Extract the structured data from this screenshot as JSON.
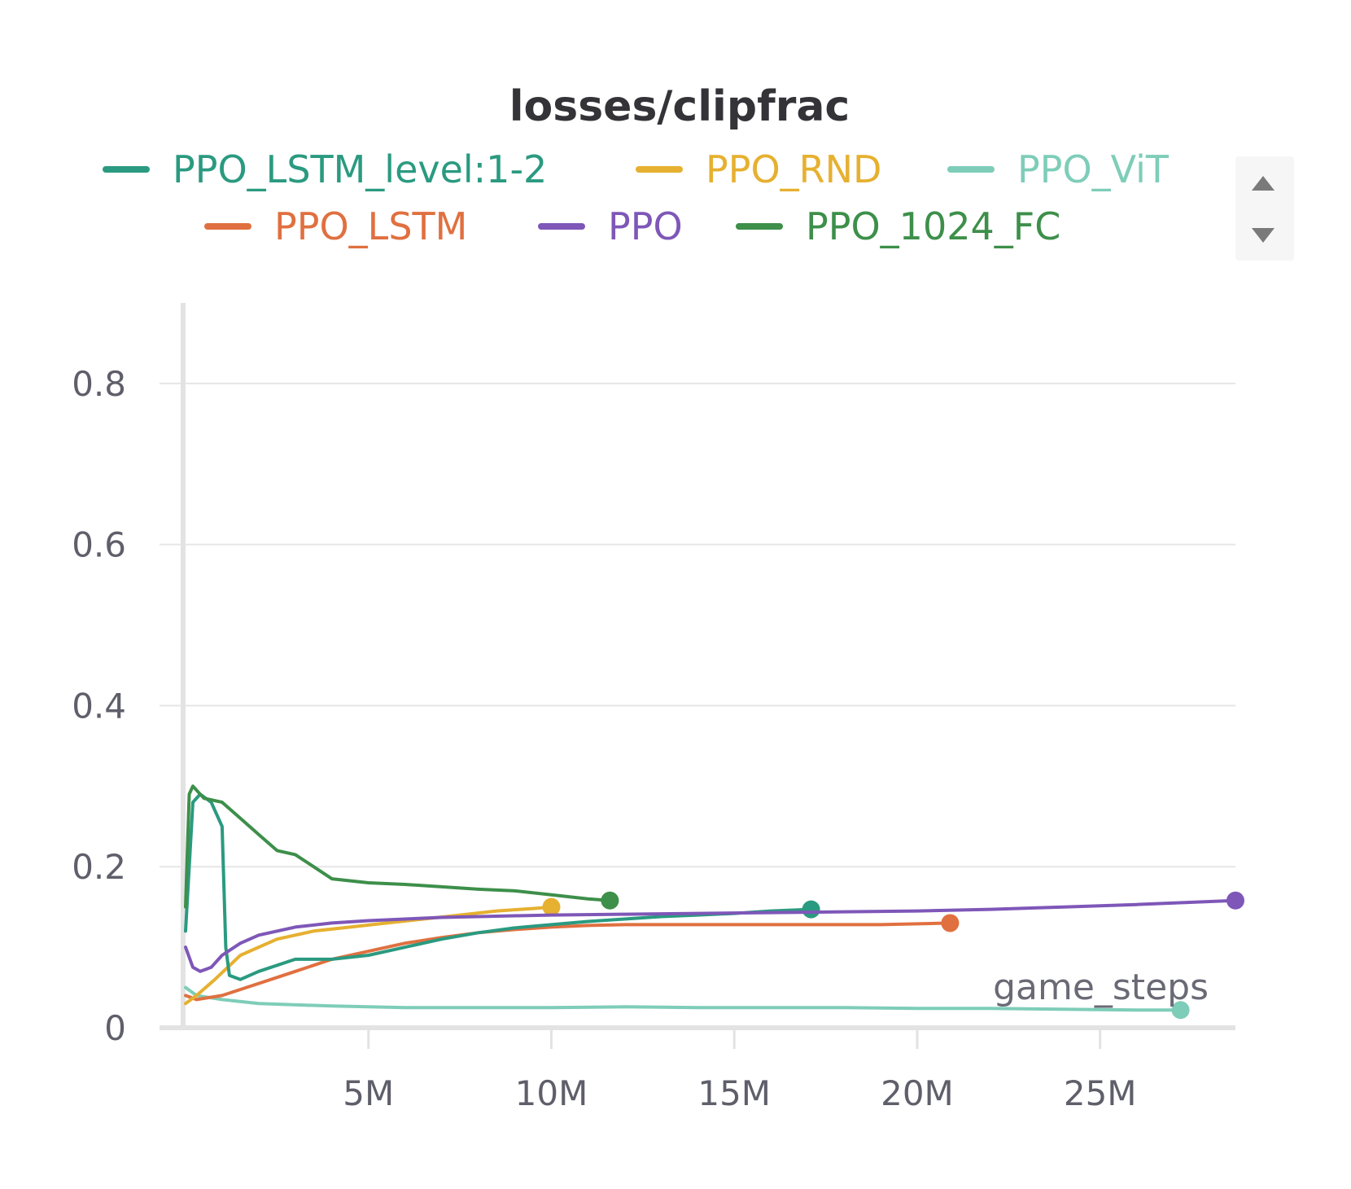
{
  "chart_data": {
    "type": "line",
    "title": "losses/clipfrac",
    "xlabel": "game_steps",
    "ylabel": "",
    "xlim": [
      0,
      28700000
    ],
    "ylim": [
      0,
      0.9
    ],
    "x_ticks": [
      5000000,
      10000000,
      15000000,
      20000000,
      25000000
    ],
    "x_tick_labels": [
      "5M",
      "10M",
      "15M",
      "20M",
      "25M"
    ],
    "y_ticks": [
      0,
      0.2,
      0.4,
      0.6,
      0.8
    ],
    "y_tick_labels": [
      "0",
      "0.2",
      "0.4",
      "0.6",
      "0.8"
    ],
    "grid": true,
    "legend_position": "top",
    "series": [
      {
        "name": "PPO_LSTM_level:1-2",
        "color": "#2a9a80",
        "end_marker": true,
        "x": [
          0,
          200000,
          400000,
          700000,
          1000000,
          1100000,
          1200000,
          1500000,
          2000000,
          3000000,
          4000000,
          5000000,
          6000000,
          7000000,
          8000000,
          9000000,
          10000000,
          11000000,
          12000000,
          13000000,
          14000000,
          15000000,
          16000000,
          17100000
        ],
        "y": [
          0.12,
          0.28,
          0.29,
          0.28,
          0.25,
          0.1,
          0.065,
          0.06,
          0.07,
          0.085,
          0.085,
          0.09,
          0.1,
          0.11,
          0.118,
          0.124,
          0.128,
          0.132,
          0.135,
          0.138,
          0.14,
          0.142,
          0.145,
          0.147
        ]
      },
      {
        "name": "PPO_RND",
        "color": "#e6b030",
        "end_marker": true,
        "x": [
          0,
          300000,
          800000,
          1500000,
          2500000,
          3500000,
          4500000,
          5500000,
          6500000,
          7500000,
          8500000,
          9500000,
          10000000
        ],
        "y": [
          0.03,
          0.04,
          0.06,
          0.09,
          0.11,
          0.12,
          0.125,
          0.13,
          0.135,
          0.14,
          0.145,
          0.148,
          0.15
        ]
      },
      {
        "name": "PPO_ViT",
        "color": "#7ecdb8",
        "end_marker": true,
        "x": [
          0,
          300000,
          1000000,
          2000000,
          4000000,
          6000000,
          8000000,
          10000000,
          12000000,
          14000000,
          16000000,
          18000000,
          20000000,
          22000000,
          24000000,
          26000000,
          27200000
        ],
        "y": [
          0.05,
          0.04,
          0.035,
          0.03,
          0.027,
          0.025,
          0.025,
          0.025,
          0.026,
          0.025,
          0.025,
          0.025,
          0.024,
          0.024,
          0.023,
          0.022,
          0.022
        ]
      },
      {
        "name": "PPO_LSTM",
        "color": "#e07040",
        "end_marker": true,
        "x": [
          0,
          300000,
          1000000,
          2000000,
          3000000,
          4000000,
          5000000,
          6000000,
          7000000,
          8000000,
          9000000,
          10000000,
          11000000,
          12000000,
          13000000,
          14000000,
          15000000,
          16000000,
          17000000,
          18000000,
          19000000,
          20000000,
          20900000
        ],
        "y": [
          0.04,
          0.035,
          0.04,
          0.055,
          0.07,
          0.085,
          0.095,
          0.105,
          0.112,
          0.118,
          0.122,
          0.125,
          0.127,
          0.128,
          0.128,
          0.128,
          0.128,
          0.128,
          0.128,
          0.128,
          0.128,
          0.129,
          0.13
        ]
      },
      {
        "name": "PPO",
        "color": "#7e57b8",
        "end_marker": true,
        "x": [
          0,
          200000,
          400000,
          700000,
          1000000,
          1500000,
          2000000,
          3000000,
          4000000,
          5000000,
          6000000,
          7000000,
          8000000,
          9000000,
          10000000,
          12000000,
          14000000,
          16000000,
          18000000,
          20000000,
          22000000,
          24000000,
          26000000,
          28700000
        ],
        "y": [
          0.1,
          0.075,
          0.07,
          0.075,
          0.09,
          0.105,
          0.115,
          0.125,
          0.13,
          0.133,
          0.135,
          0.137,
          0.138,
          0.139,
          0.14,
          0.141,
          0.142,
          0.143,
          0.144,
          0.145,
          0.147,
          0.15,
          0.153,
          0.158
        ]
      },
      {
        "name": "PPO_1024_FC",
        "color": "#3d8f4a",
        "end_marker": true,
        "x": [
          0,
          100000,
          200000,
          500000,
          1000000,
          1500000,
          2000000,
          2500000,
          3000000,
          3500000,
          4000000,
          5000000,
          6000000,
          7000000,
          8000000,
          9000000,
          10000000,
          11000000,
          11600000
        ],
        "y": [
          0.15,
          0.29,
          0.3,
          0.285,
          0.28,
          0.26,
          0.24,
          0.22,
          0.215,
          0.2,
          0.185,
          0.18,
          0.178,
          0.175,
          0.172,
          0.17,
          0.165,
          0.16,
          0.158
        ]
      }
    ]
  }
}
